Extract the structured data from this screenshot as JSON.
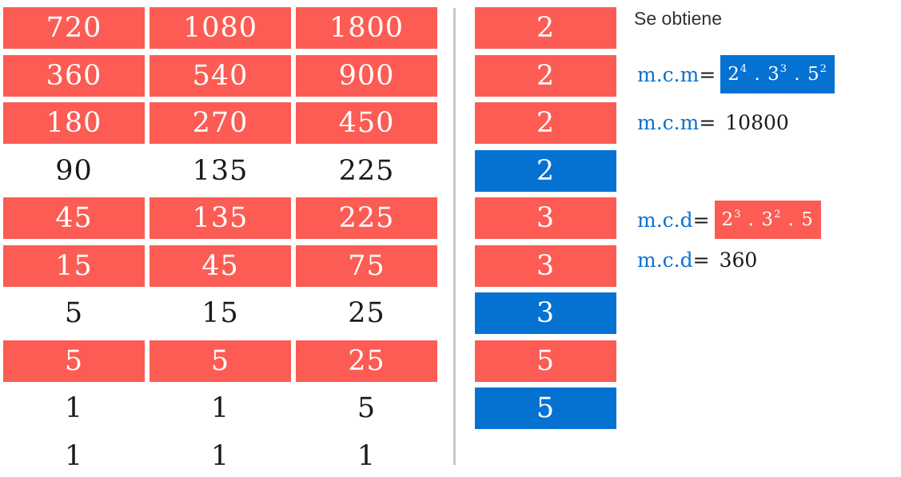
{
  "colors": {
    "red": "#fc5c54",
    "blue": "#0572d2",
    "label": "#0a72d0"
  },
  "table": {
    "rows": [
      {
        "cells": [
          "720",
          "1080",
          "1800"
        ],
        "highlight": "red",
        "divisor": "2",
        "divisor_color": "red"
      },
      {
        "cells": [
          "360",
          "540",
          "900"
        ],
        "highlight": "red",
        "divisor": "2",
        "divisor_color": "red"
      },
      {
        "cells": [
          "180",
          "270",
          "450"
        ],
        "highlight": "red",
        "divisor": "2",
        "divisor_color": "red"
      },
      {
        "cells": [
          "90",
          "135",
          "225"
        ],
        "highlight": "none",
        "divisor": "2",
        "divisor_color": "blue"
      },
      {
        "cells": [
          "45",
          "135",
          "225"
        ],
        "highlight": "red",
        "divisor": "3",
        "divisor_color": "red"
      },
      {
        "cells": [
          "15",
          "45",
          "75"
        ],
        "highlight": "red",
        "divisor": "3",
        "divisor_color": "red"
      },
      {
        "cells": [
          "5",
          "15",
          "25"
        ],
        "highlight": "none",
        "divisor": "3",
        "divisor_color": "blue"
      },
      {
        "cells": [
          "5",
          "5",
          "25"
        ],
        "highlight": "red",
        "divisor": "5",
        "divisor_color": "red"
      },
      {
        "cells": [
          "1",
          "1",
          "5"
        ],
        "highlight": "none",
        "divisor": "5",
        "divisor_color": "blue"
      },
      {
        "cells": [
          "1",
          "1",
          "1"
        ],
        "highlight": "none",
        "divisor": "",
        "divisor_color": "none"
      }
    ]
  },
  "result": {
    "heading": "Se obtiene",
    "mcm_label": "m.c.m",
    "equals": "=",
    "mcm_factors": [
      {
        "base": "2",
        "exp": "4"
      },
      {
        "base": "3",
        "exp": "3"
      },
      {
        "base": "5",
        "exp": "2"
      }
    ],
    "mcm_value": "10800",
    "mcd_label": "m.c.d",
    "mcd_factors": [
      {
        "base": "2",
        "exp": "3"
      },
      {
        "base": "3",
        "exp": "2"
      },
      {
        "base": "5",
        "exp": ""
      }
    ],
    "mcd_value": "360",
    "separator": " . "
  }
}
